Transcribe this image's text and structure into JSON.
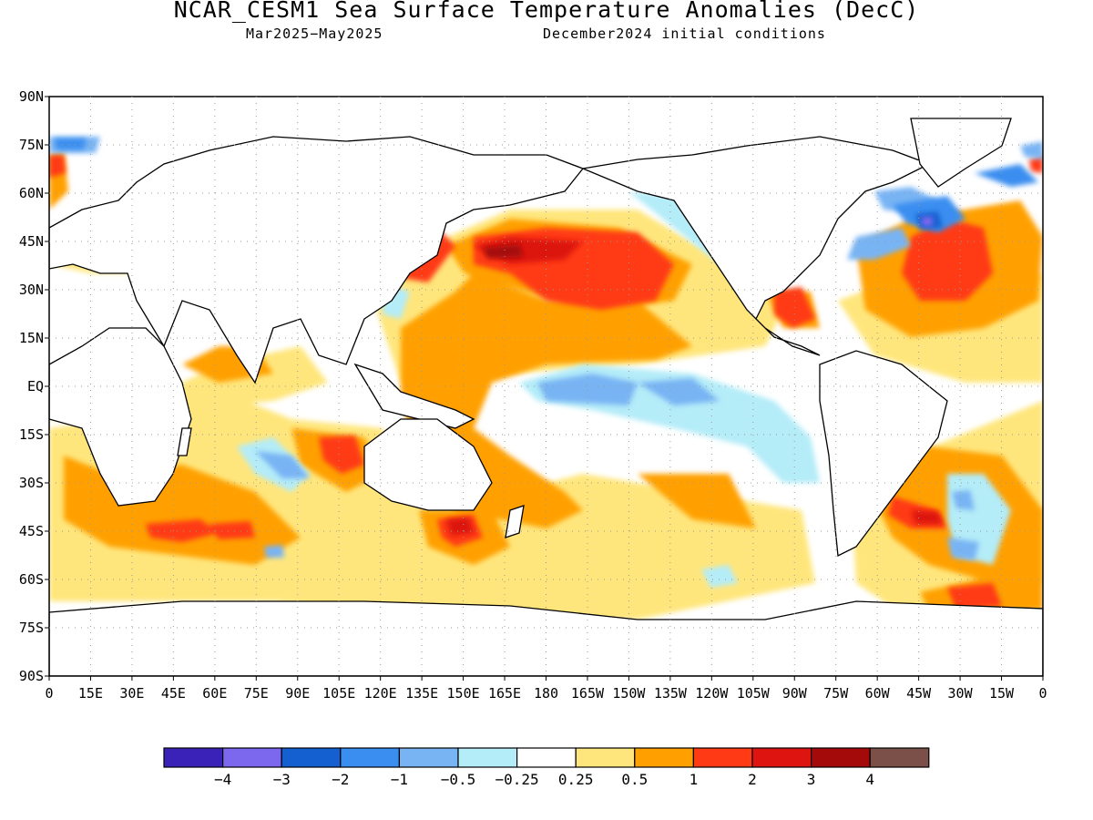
{
  "header": {
    "title": "NCAR_CESM1 Sea Surface Temperature Anomalies (DecC)",
    "valid_period": "Mar2025−May2025",
    "init": "December2024 initial conditions"
  },
  "axes": {
    "lat_labels": [
      "90N",
      "75N",
      "60N",
      "45N",
      "30N",
      "15N",
      "EQ",
      "15S",
      "30S",
      "45S",
      "60S",
      "75S",
      "90S"
    ],
    "lon_labels": [
      "0",
      "15E",
      "30E",
      "45E",
      "60E",
      "75E",
      "90E",
      "105E",
      "120E",
      "135E",
      "150E",
      "165E",
      "180",
      "165W",
      "150W",
      "135W",
      "120W",
      "105W",
      "90W",
      "75W",
      "60W",
      "45W",
      "30W",
      "15W",
      "0"
    ]
  },
  "colorbar": {
    "colors": [
      "#3a22b8",
      "#7b68ee",
      "#1560d0",
      "#3a8ef0",
      "#78b4f4",
      "#b4ecf8",
      "#ffffff",
      "#ffe67c",
      "#ffa000",
      "#ff3a14",
      "#dd1410",
      "#a50a0a",
      "#7a5048"
    ],
    "labels": [
      "−4",
      "−3",
      "−2",
      "−1",
      "−0.5",
      "−0.25",
      "0.25",
      "0.5",
      "1",
      "2",
      "3",
      "4"
    ]
  },
  "chart_data": {
    "type": "heatmap",
    "title": "NCAR_CESM1 Sea Surface Temperature Anomalies (DecC)",
    "subtitle": "Mar2025−May2025   December2024 initial conditions",
    "lat_range": [
      -90,
      90
    ],
    "lon_range": [
      0,
      360
    ],
    "color_levels": [
      -4,
      -3,
      -2,
      -1,
      -0.5,
      -0.25,
      0.25,
      0.5,
      1,
      2,
      3,
      4
    ],
    "features": [
      {
        "region": "North Pacific",
        "anomaly_max": 3
      },
      {
        "region": "Western Pacific warm pool",
        "anomaly_max": 1
      },
      {
        "region": "Central/Eastern equatorial Pacific",
        "anomaly_min": -1
      },
      {
        "region": "Gulf of Mexico",
        "anomaly_max": 2
      },
      {
        "region": "Labrador Sea",
        "anomaly_min": -4
      },
      {
        "region": "North Atlantic subtropics",
        "anomaly_max": 2
      },
      {
        "region": "South Atlantic",
        "anomaly_max": 2
      },
      {
        "region": "Southern Indian Ocean",
        "anomaly_max": 2
      },
      {
        "region": "Tasman Sea",
        "anomaly_max": 3
      }
    ]
  }
}
